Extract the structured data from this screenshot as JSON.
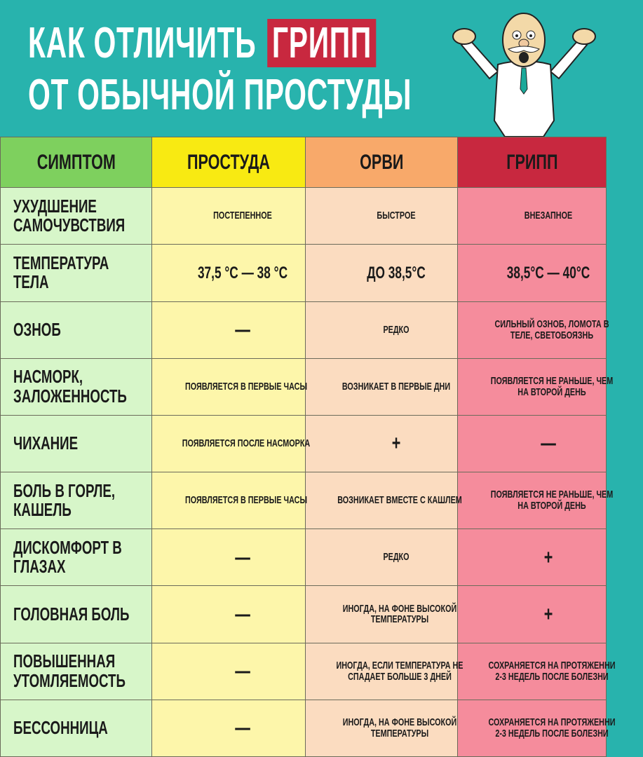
{
  "title": {
    "line1": "КАК ОТЛИЧИТЬ",
    "highlight": "ГРИПП",
    "line2": "ОТ ОБЫЧНОЙ ПРОСТУДЫ"
  },
  "colors": {
    "background": "#28b3ad",
    "symptom": "#7ed05e",
    "cold": "#f8ea12",
    "arvi": "#f8a96a",
    "flu": "#c8283f"
  },
  "headers": [
    "СИМПТОМ",
    "ПРОСТУДА",
    "ОРВИ",
    "ГРИПП"
  ],
  "rows": [
    {
      "s": "УХУДШЕНИЕ САМОЧУВСТВИЯ",
      "c": "ПОСТЕПЕННОЕ",
      "a": "БЫСТРОЕ",
      "f": "ВНЕЗАПНОЕ"
    },
    {
      "s": "ТЕМПЕРАТУРА ТЕЛА",
      "c": "37,5 °С — 38 °С",
      "a": "ДО 38,5°С",
      "f": "38,5°С — 40°С"
    },
    {
      "s": "ОЗНОБ",
      "c": "—",
      "a": "РЕДКО",
      "f": "СИЛЬНЫЙ ОЗНОБ, ЛОМОТА В ТЕЛЕ, СВЕТОБОЯЗНЬ"
    },
    {
      "s": "НАСМОРК, ЗАЛОЖЕННОСТЬ",
      "c": "ПОЯВЛЯЕТСЯ В ПЕРВЫЕ ЧАСЫ",
      "a": "ВОЗНИКАЕТ В ПЕРВЫЕ ДНИ",
      "f": "ПОЯВЛЯЕТСЯ НЕ РАНЬШЕ, ЧЕМ НА ВТОРОЙ ДЕНЬ"
    },
    {
      "s": "ЧИХАНИЕ",
      "c": "ПОЯВЛЯЕТСЯ ПОСЛЕ НАСМОРКА",
      "a": "+",
      "f": "—"
    },
    {
      "s": "БОЛЬ В ГОРЛЕ, КАШЕЛЬ",
      "c": "ПОЯВЛЯЕТСЯ В ПЕРВЫЕ ЧАСЫ",
      "a": "ВОЗНИКАЕТ ВМЕСТЕ С КАШЛЕМ",
      "f": "ПОЯВЛЯЕТСЯ НЕ РАНЬШЕ, ЧЕМ НА ВТОРОЙ ДЕНЬ"
    },
    {
      "s": "ДИСКОМФОРТ В ГЛАЗАХ",
      "c": "—",
      "a": "РЕДКО",
      "f": "+"
    },
    {
      "s": "ГОЛОВНАЯ БОЛЬ",
      "c": "—",
      "a": "ИНОГДА, НА ФОНЕ ВЫСОКОЙ ТЕМПЕРАТУРЫ",
      "f": "+"
    },
    {
      "s": "ПОВЫШЕННАЯ УТОМЛЯЕМОСТЬ",
      "c": "—",
      "a": "ИНОГДА, ЕСЛИ ТЕМПЕРАТУРА НЕ СПАДАЕТ БОЛЬШЕ 3 ДНЕЙ",
      "f": "СОХРАНЯЕТСЯ НА ПРОТЯЖЕННИ 2-3 НЕДЕЛЬ ПОСЛЕ БОЛЕЗНИ"
    },
    {
      "s": "БЕССОННИЦА",
      "c": "—",
      "a": "ИНОГДА, НА ФОНЕ ВЫСОКОЙ ТЕМПЕРАТУРЫ",
      "f": "СОХРАНЯЕТСЯ НА ПРОТЯЖЕННИ 2-3 НЕДЕЛЬ ПОСЛЕ БОЛЕЗНИ"
    }
  ]
}
